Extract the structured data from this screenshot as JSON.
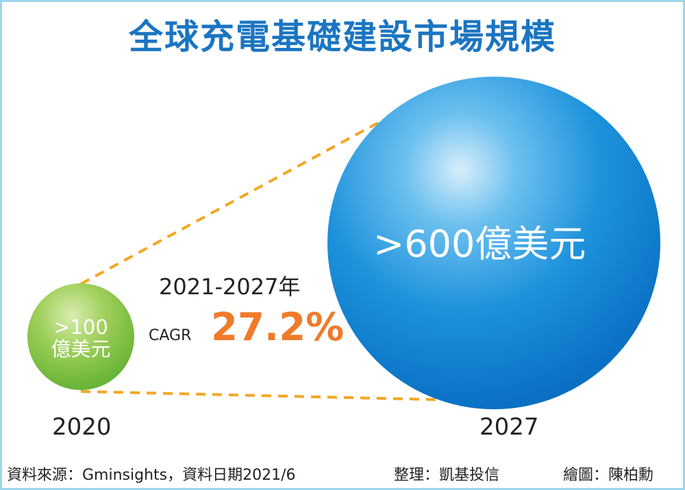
{
  "title": "全球充電基礎建設市場規模",
  "left": {
    "value": ">100",
    "unit": "億美元",
    "year": "2020"
  },
  "right": {
    "value": ">600億美元",
    "year": "2027"
  },
  "period": "2021-2027年",
  "cagr": {
    "label": "CAGR",
    "value": "27.2%"
  },
  "footer": {
    "source": "資料來源：Gminsights，資料日期2021/6",
    "compiled": "整理：凱基投信",
    "drawn": "繪圖：陳柏勳"
  },
  "colors": {
    "title": "#1b75c2",
    "accent": "#f07a2a",
    "dash": "#f4a623",
    "border": "#9dd6ec"
  }
}
